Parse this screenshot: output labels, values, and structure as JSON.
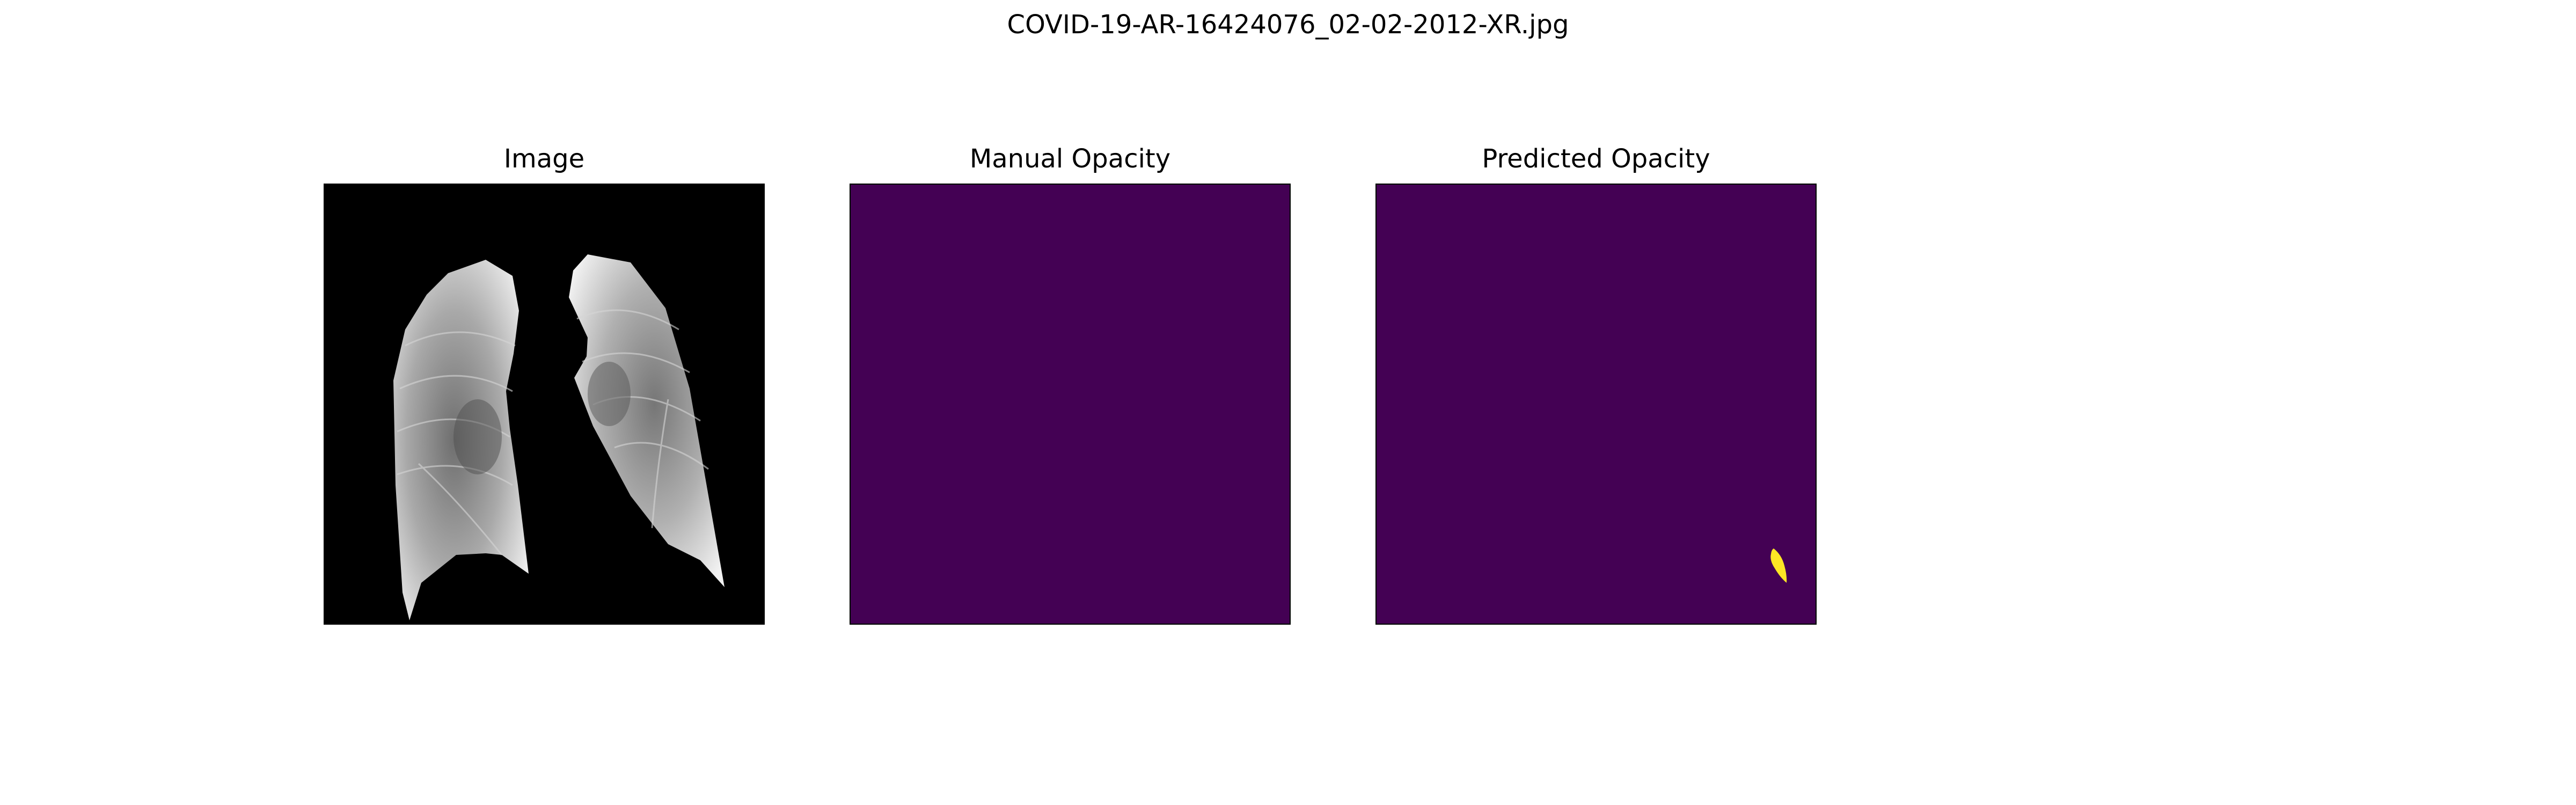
{
  "figure": {
    "title": "COVID-19-AR-16424076_02-02-2012-XR.jpg",
    "panels": [
      {
        "title": "Image"
      },
      {
        "title": "Manual Opacity"
      },
      {
        "title": "Predicted Opacity"
      }
    ]
  },
  "colors": {
    "mask_background": "#440154",
    "mask_foreground": "#fde725",
    "image_background": "#000000"
  }
}
